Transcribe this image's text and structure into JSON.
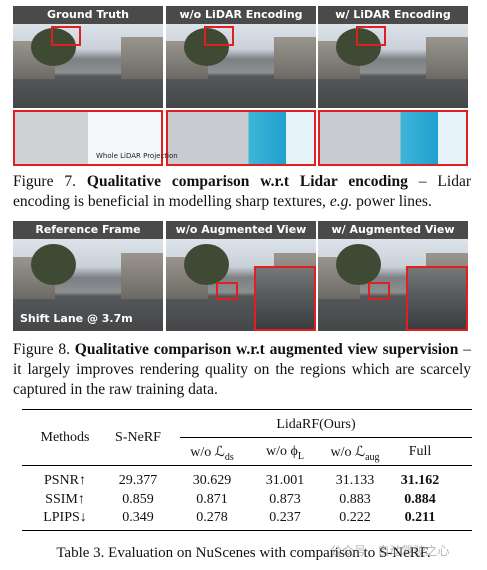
{
  "figure7": {
    "panels": [
      "Ground Truth",
      "w/o LiDAR Encoding",
      "w/ LiDAR Encoding"
    ],
    "inset_label": "Whole LiDAR Projection",
    "caption": [
      {
        "text": "Figure 7. ",
        "style": "normal"
      },
      {
        "text": "Qualitative comparison w.r.t Lidar encoding",
        "style": "bold"
      },
      {
        "text": " – Lidar encoding is beneficial in modelling sharp textures, ",
        "style": "normal"
      },
      {
        "text": "e.g.",
        "style": "italic"
      },
      {
        "text": " power lines.",
        "style": "normal"
      }
    ]
  },
  "figure8": {
    "panels": [
      "Reference Frame",
      "w/o Augmented View",
      "w/ Augmented View"
    ],
    "inset_label": "Shift Lane @ 3.7m",
    "caption": [
      {
        "text": "Figure 8. ",
        "style": "normal"
      },
      {
        "text": "Qualitative comparison w.r.t augmented view supervision",
        "style": "bold"
      },
      {
        "text": " – it largely improves rendering quality on the regions which are scarcely captured in the raw training data.",
        "style": "normal"
      }
    ]
  },
  "table": {
    "group_header": "LidaRF(Ours)",
    "headers": [
      {
        "text": "Methods"
      },
      {
        "text": "S-NeRF"
      },
      {
        "text": "w/o ℒ",
        "sub": "ds"
      },
      {
        "text": "w/o ϕ",
        "sub": "L"
      },
      {
        "text": "w/o ℒ",
        "sub": "aug"
      },
      {
        "text": "Full"
      }
    ],
    "rows": [
      [
        "PSNR↑",
        "29.377",
        "30.629",
        "31.001",
        "31.133",
        "31.162"
      ],
      [
        "SSIM↑",
        "0.859",
        "0.871",
        "0.873",
        "0.883",
        "0.884"
      ],
      [
        "LPIPS↓",
        "0.349",
        "0.278",
        "0.237",
        "0.222",
        "0.211"
      ]
    ],
    "caption": "Table 3. Evaluation on NuScenes with comparison to S-NeRF."
  },
  "watermark": "公众号 · 自动驾驶之心"
}
